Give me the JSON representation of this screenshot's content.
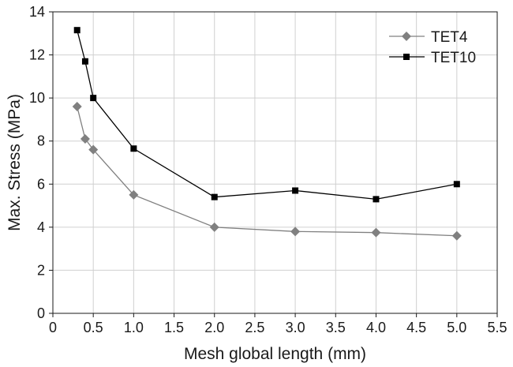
{
  "chart_data": {
    "type": "line",
    "title": "",
    "xlabel": "Mesh global length (mm)",
    "ylabel": "Max. Stress (MPa)",
    "xlim": [
      0,
      5.5
    ],
    "ylim": [
      0,
      14
    ],
    "x_ticks": [
      "0",
      "0.5",
      "1.0",
      "1.5",
      "2.0",
      "2.5",
      "3.0",
      "3.5",
      "4.0",
      "4.5",
      "5.0",
      "5.5"
    ],
    "y_ticks": [
      "0",
      "2",
      "4",
      "6",
      "8",
      "10",
      "12",
      "14"
    ],
    "grid": true,
    "legend_position": "top-right",
    "series": [
      {
        "name": "TET4",
        "marker": "diamond",
        "color": "#808080",
        "x": [
          0.3,
          0.4,
          0.5,
          1.0,
          2.0,
          3.0,
          4.0,
          5.0
        ],
        "y": [
          9.6,
          8.1,
          7.6,
          5.5,
          4.0,
          3.8,
          3.75,
          3.6
        ]
      },
      {
        "name": "TET10",
        "marker": "square",
        "color": "#000000",
        "x": [
          0.3,
          0.4,
          0.5,
          1.0,
          2.0,
          3.0,
          4.0,
          5.0
        ],
        "y": [
          13.15,
          11.7,
          10.0,
          7.65,
          5.4,
          5.7,
          5.3,
          6.0
        ]
      }
    ]
  }
}
